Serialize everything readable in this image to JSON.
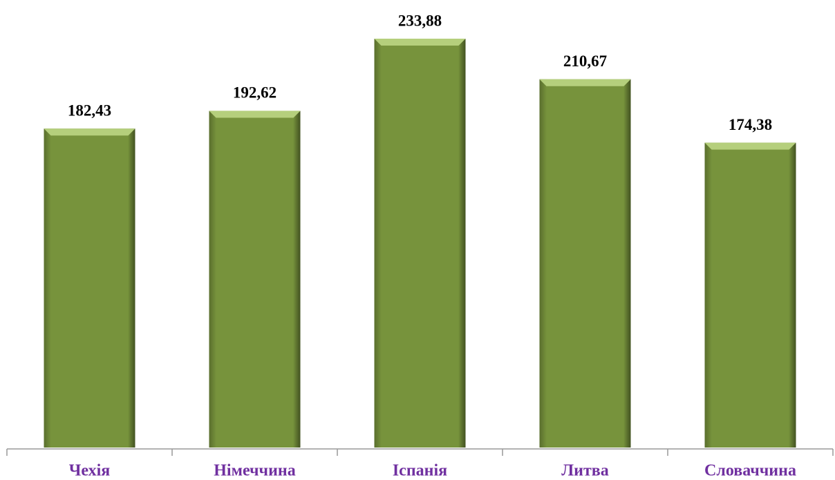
{
  "chart_data": {
    "type": "bar",
    "categories": [
      "Чехія",
      "Німеччина",
      "Іспанія",
      "Литва",
      "Словаччина"
    ],
    "values": [
      182.43,
      192.62,
      233.88,
      210.67,
      174.38
    ],
    "value_labels": [
      "182,43",
      "192,62",
      "233,88",
      "210,67",
      "174,38"
    ],
    "color": "#77933c"
  }
}
